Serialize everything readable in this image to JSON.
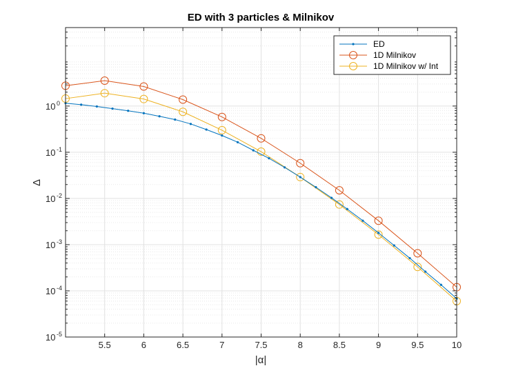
{
  "chart_data": {
    "type": "line",
    "title": "ED with 3 particles & Milnikov",
    "xlabel": "|α|",
    "ylabel": "Δ",
    "xlim": [
      5.0,
      10.0
    ],
    "ylim": [
      1e-05,
      50
    ],
    "yscale": "log",
    "grid": true,
    "minor_grid": true,
    "legend": "top-right",
    "x_ticks": [
      5.5,
      6,
      6.5,
      7,
      7.5,
      8,
      8.5,
      9,
      9.5,
      10
    ],
    "x_tick_labels": [
      "5.5",
      "6",
      "6.5",
      "7",
      "7.5",
      "8",
      "8.5",
      "9",
      "9.5",
      "10"
    ],
    "y_ticks": [
      {
        "value": 1e-05,
        "base": "10",
        "exp": "-5"
      },
      {
        "value": 0.0001,
        "base": "10",
        "exp": "-4"
      },
      {
        "value": 0.001,
        "base": "10",
        "exp": "-3"
      },
      {
        "value": 0.01,
        "base": "10",
        "exp": "-2"
      },
      {
        "value": 0.1,
        "base": "10",
        "exp": "-1"
      },
      {
        "value": 1,
        "base": "10",
        "exp": "0"
      }
    ],
    "series": [
      {
        "name": "ED",
        "color": "#0072BD",
        "marker": "dot",
        "x": [
          5.0,
          5.2,
          5.4,
          5.6,
          5.8,
          6.0,
          6.2,
          6.4,
          6.6,
          6.8,
          7.0,
          7.2,
          7.4,
          7.6,
          7.8,
          8.0,
          8.2,
          8.4,
          8.6,
          8.8,
          9.0,
          9.2,
          9.4,
          9.6,
          9.8,
          10.0
        ],
        "y": [
          1.15,
          1.07,
          0.98,
          0.88,
          0.79,
          0.7,
          0.6,
          0.51,
          0.41,
          0.31,
          0.23,
          0.165,
          0.11,
          0.074,
          0.047,
          0.029,
          0.0175,
          0.0103,
          0.0059,
          0.0033,
          0.0018,
          0.00096,
          0.00051,
          0.00026,
          0.000135,
          6.8e-05
        ]
      },
      {
        "name": "1D Milnikov",
        "color": "#D95319",
        "marker": "circle",
        "x": [
          5.0,
          5.5,
          6.0,
          6.5,
          7.0,
          7.5,
          8.0,
          8.5,
          9.0,
          9.5,
          10.0
        ],
        "y": [
          2.75,
          3.55,
          2.65,
          1.38,
          0.58,
          0.2,
          0.058,
          0.015,
          0.0033,
          0.00065,
          0.00012
        ]
      },
      {
        "name": "1D Milnikov w/ Int",
        "color": "#EDB120",
        "marker": "circle",
        "x": [
          5.0,
          5.5,
          6.0,
          6.5,
          7.0,
          7.5,
          8.0,
          8.5,
          9.0,
          9.5,
          10.0
        ],
        "y": [
          1.45,
          1.9,
          1.42,
          0.75,
          0.3,
          0.103,
          0.029,
          0.0074,
          0.00165,
          0.00033,
          6e-05
        ]
      }
    ]
  }
}
